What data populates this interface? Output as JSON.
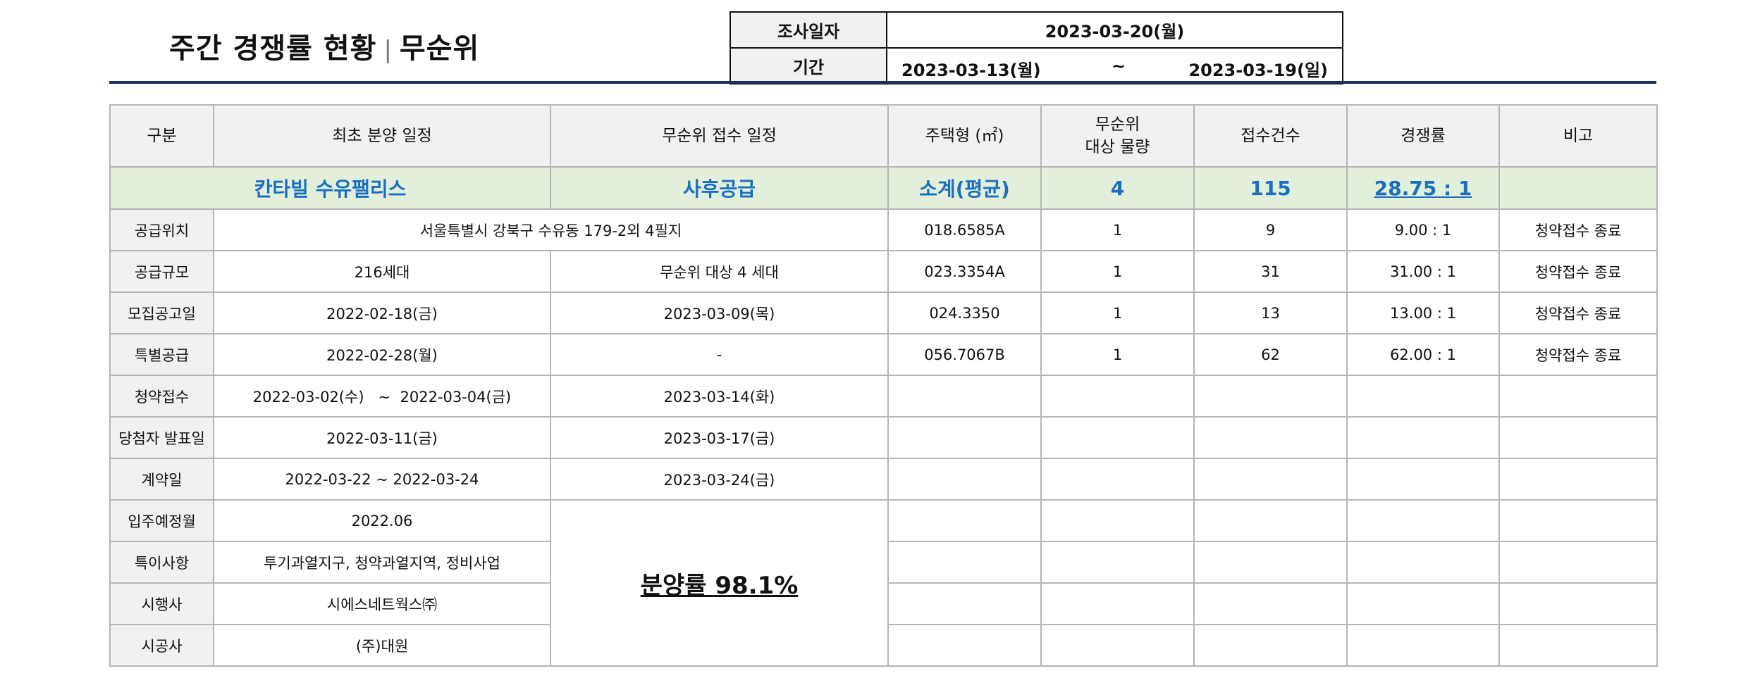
{
  "title": {
    "main": "주간 경쟁률 현황",
    "separator": "|",
    "sub": "무순위"
  },
  "info": {
    "survey_label": "조사일자",
    "survey_date": "2023-03-20(월)",
    "period_label": "기간",
    "period_start": "2023-03-13(월)",
    "period_tilde": "~",
    "period_end": "2023-03-19(일)"
  },
  "headers": {
    "category": "구분",
    "initial_schedule": "최초 분양 일정",
    "unranked_schedule": "무순위 접수 일정",
    "housing_type": "주택형 (㎡)",
    "target_qty": "무순위\n대상 물량",
    "applications": "접수건수",
    "competition": "경쟁률",
    "remarks": "비고"
  },
  "summary": {
    "complex_name": "칸타빌 수유팰리스",
    "supply_type": "사후공급",
    "subtotal_label": "소계(평균)",
    "total_qty": "4",
    "total_applications": "115",
    "avg_rate": "28.75 : 1"
  },
  "rows": [
    {
      "label": "공급위치",
      "initial": "서울특별시 강북구 수유동 179-2외 4필지",
      "unranked": "",
      "type": "018.6585A",
      "qty": "1",
      "apps": "9",
      "rate": "9.00 : 1",
      "remark": "청약접수 종료"
    },
    {
      "label": "공급규모",
      "initial": "216세대",
      "unranked": "무순위 대상 4 세대",
      "type": "023.3354A",
      "qty": "1",
      "apps": "31",
      "rate": "31.00 : 1",
      "remark": "청약접수 종료"
    },
    {
      "label": "모집공고일",
      "initial": "2022-02-18(금)",
      "unranked": "2023-03-09(목)",
      "type": "024.3350",
      "qty": "1",
      "apps": "13",
      "rate": "13.00 : 1",
      "remark": "청약접수 종료"
    },
    {
      "label": "특별공급",
      "initial": "2022-02-28(월)",
      "unranked": "-",
      "type": "056.7067B",
      "qty": "1",
      "apps": "62",
      "rate": "62.00 : 1",
      "remark": "청약접수 종료"
    },
    {
      "label": "청약접수",
      "initial": "2022-03-02(수)   ~  2022-03-04(금)",
      "unranked": "2023-03-14(화)"
    },
    {
      "label": "당첨자 발표일",
      "initial": "2022-03-11(금)",
      "unranked": "2023-03-17(금)"
    },
    {
      "label": "계약일",
      "initial": "2022-03-22 ~ 2022-03-24",
      "unranked": "2023-03-24(금)"
    },
    {
      "label": "입주예정월",
      "initial": "2022.06"
    },
    {
      "label": "특이사항",
      "initial": "투기과열지구, 청약과열지역, 정비사업"
    },
    {
      "label": "시행사",
      "initial": "시에스네트웍스㈜"
    },
    {
      "label": "시공사",
      "initial": "(주)대원"
    }
  ],
  "sale_rate": "분양률 98.1%"
}
